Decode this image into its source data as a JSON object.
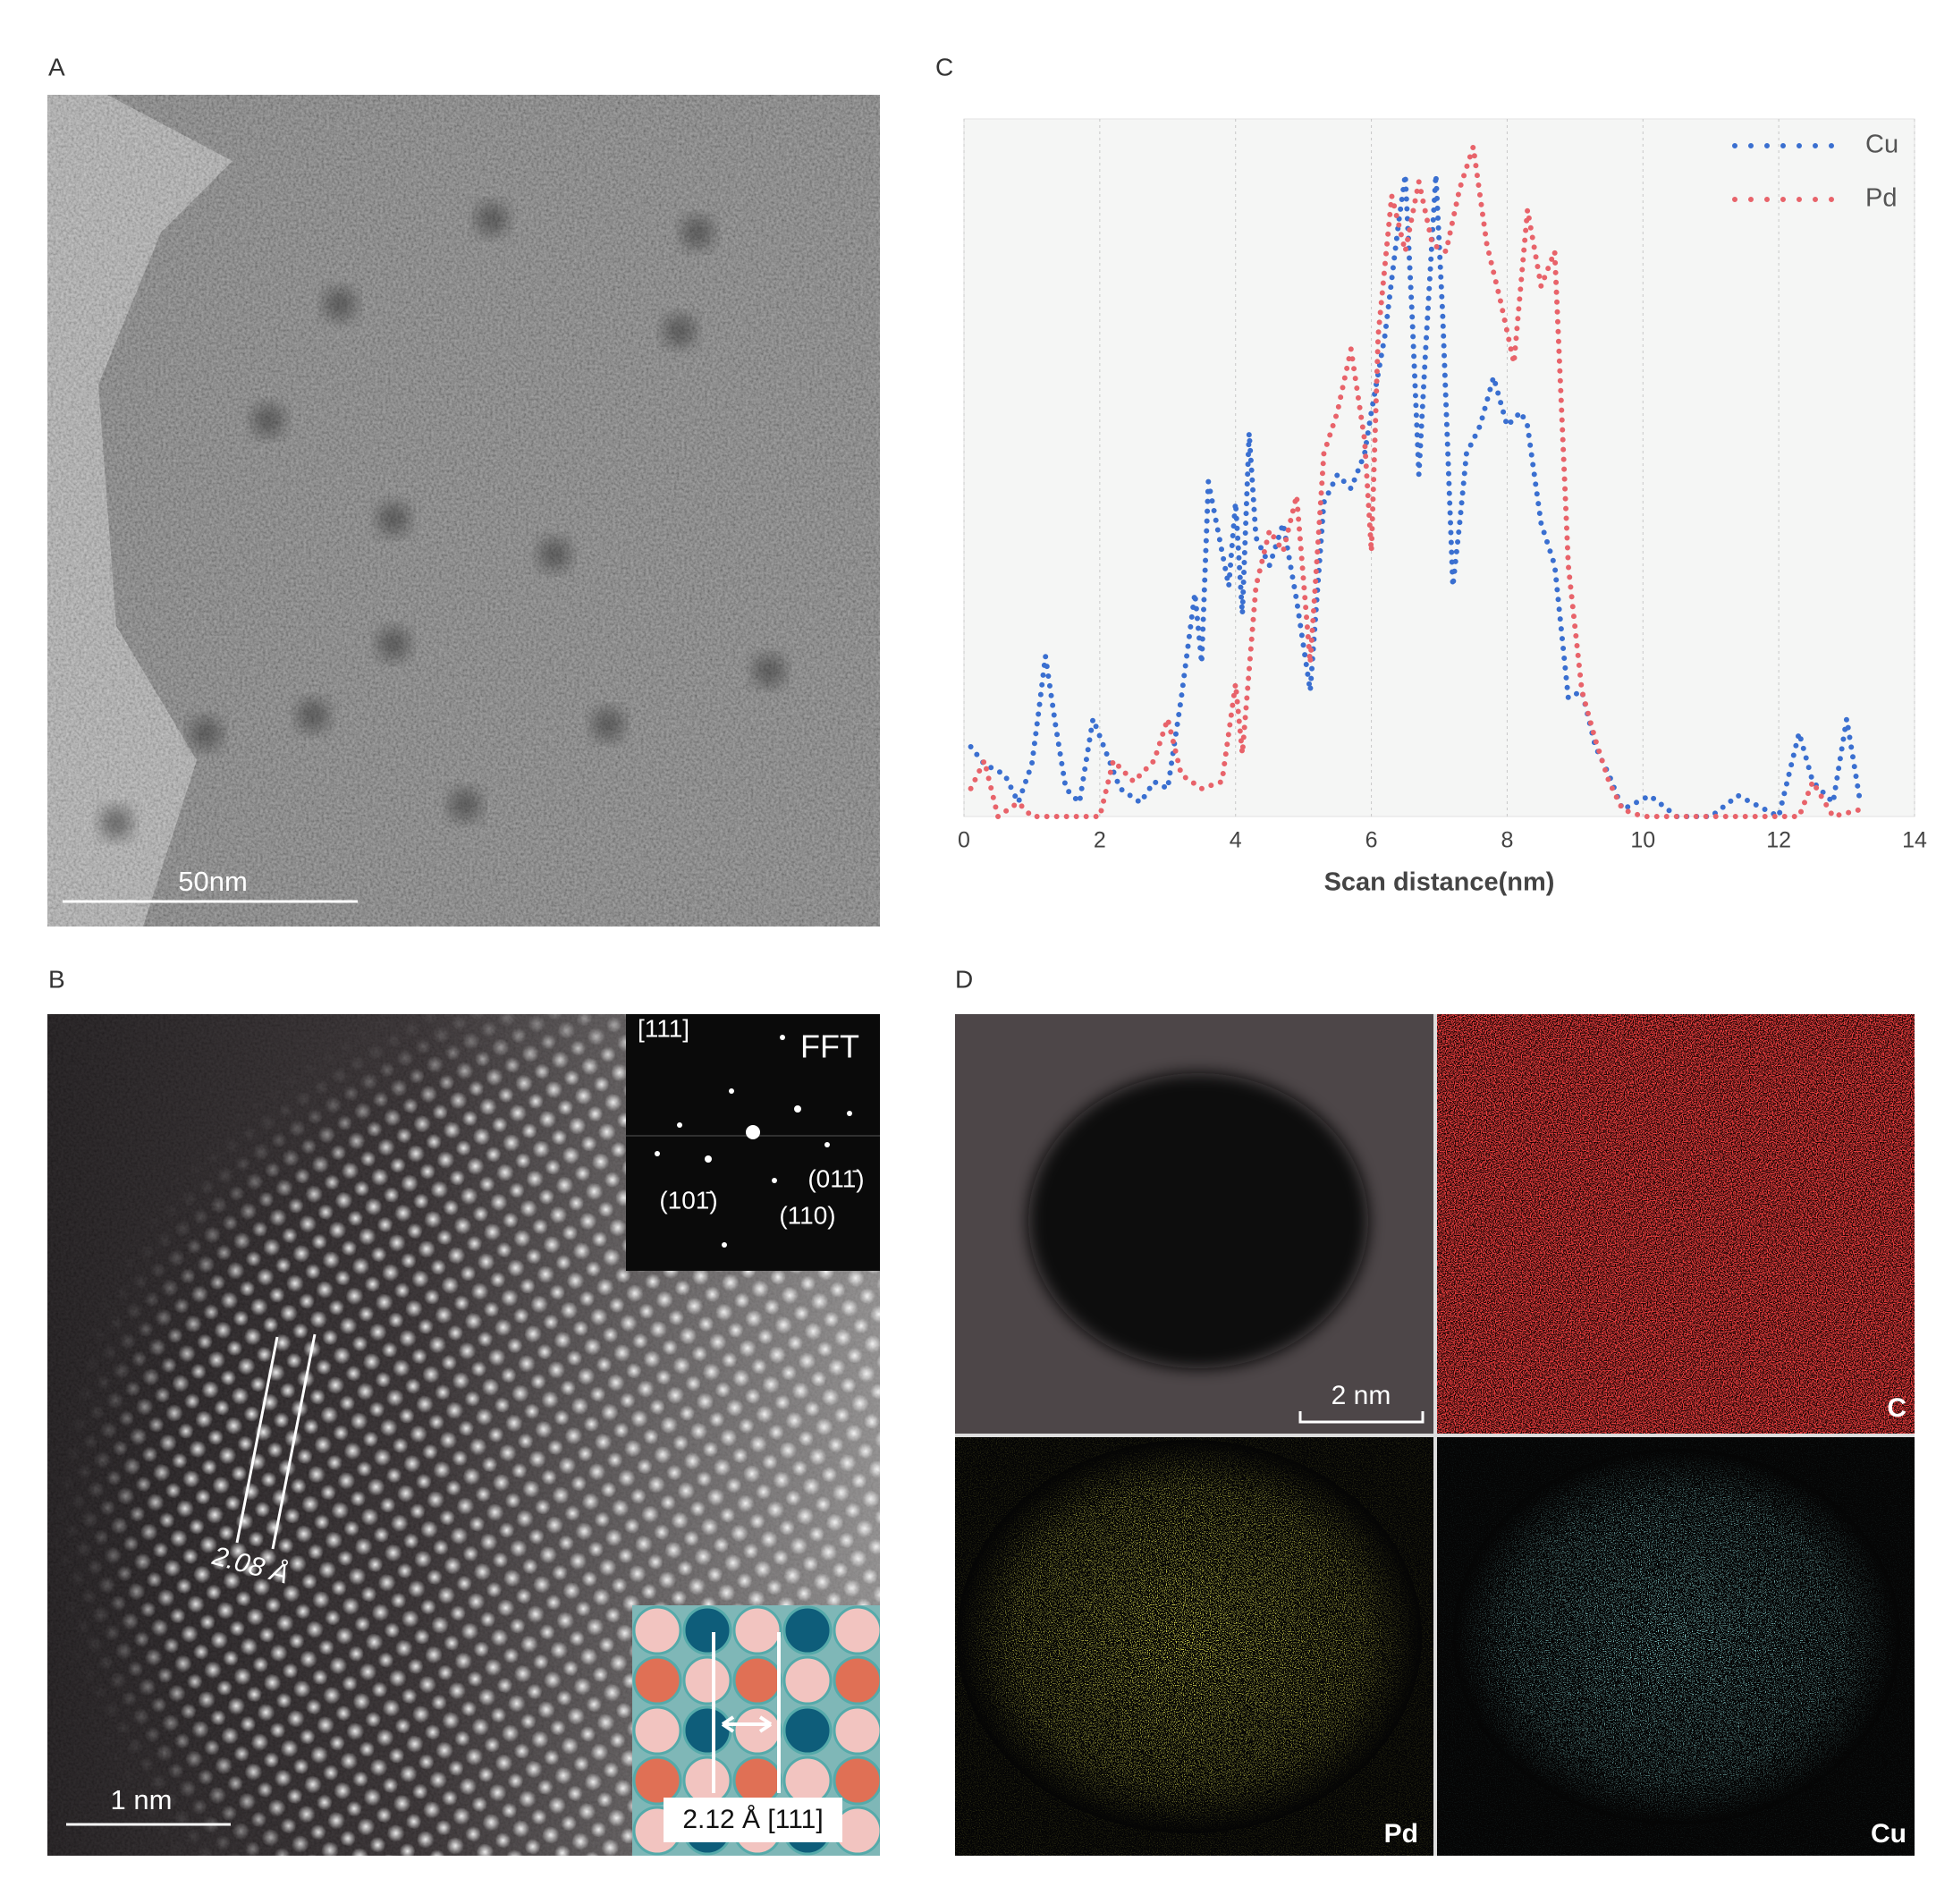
{
  "panels": {
    "a": {
      "label": "A",
      "scale_bar": "50nm"
    },
    "b": {
      "label": "B",
      "scale_bar": "1 nm",
      "spacing": "2.08 Å",
      "fft_zone": "[111]",
      "fft_title": "FFT",
      "fft_spots": [
        "(101̄)",
        "(011̄)",
        "(110)"
      ],
      "model_label": "2.12 Å [111]"
    },
    "c": {
      "label": "C"
    },
    "d": {
      "label": "D",
      "scale_bar": "2 nm",
      "maps": [
        "C",
        "Pd",
        "Cu"
      ]
    }
  },
  "chart_data": {
    "type": "line",
    "x_label": "Scan distance(nm)",
    "xlim": [
      0,
      14
    ],
    "xticks": [
      0,
      2,
      4,
      6,
      8,
      10,
      12,
      14
    ],
    "ylim": [
      0,
      100
    ],
    "grid": true,
    "legend": "top-right",
    "series": [
      {
        "name": "Cu",
        "color": "#3a6fd0",
        "x": [
          0.1,
          0.3,
          0.6,
          0.8,
          1.0,
          1.1,
          1.2,
          1.35,
          1.5,
          1.7,
          1.9,
          2.1,
          2.3,
          2.6,
          2.8,
          3.0,
          3.2,
          3.4,
          3.5,
          3.6,
          3.8,
          3.9,
          4.0,
          4.1,
          4.2,
          4.3,
          4.5,
          4.7,
          4.9,
          5.1,
          5.3,
          5.5,
          5.7,
          5.9,
          6.0,
          6.2,
          6.4,
          6.5,
          6.6,
          6.7,
          6.8,
          6.95,
          7.05,
          7.2,
          7.3,
          7.4,
          7.6,
          7.8,
          8.0,
          8.2,
          8.3,
          8.5,
          8.7,
          8.9,
          9.1,
          9.3,
          9.5,
          9.7,
          10.1,
          10.5,
          11.0,
          11.4,
          12.0,
          12.3,
          12.5,
          12.8,
          13.0,
          13.2
        ],
        "values": [
          10,
          7.5,
          6,
          2,
          7.5,
          15,
          23,
          13,
          4,
          2,
          14,
          9,
          4,
          2,
          5,
          4,
          17,
          32,
          22,
          48,
          38,
          33,
          45,
          29,
          55,
          40,
          36,
          42,
          31,
          18,
          45,
          49,
          47,
          52,
          58,
          69,
          85,
          92,
          72,
          49,
          67,
          92,
          72,
          33,
          42,
          52,
          56,
          63,
          56,
          58,
          56,
          42,
          36,
          17,
          18,
          10,
          6,
          1,
          3,
          0,
          0,
          3,
          0,
          12,
          5,
          2,
          14,
          2
        ]
      },
      {
        "name": "Pd",
        "color": "#e8636a",
        "x": [
          0.1,
          0.3,
          0.5,
          0.8,
          1.0,
          1.5,
          2.0,
          2.2,
          2.5,
          2.8,
          3.0,
          3.2,
          3.5,
          3.8,
          4.0,
          4.1,
          4.3,
          4.5,
          4.7,
          4.9,
          5.1,
          5.3,
          5.5,
          5.7,
          5.9,
          6.0,
          6.1,
          6.3,
          6.5,
          6.7,
          6.9,
          7.1,
          7.3,
          7.5,
          7.7,
          7.9,
          8.1,
          8.3,
          8.5,
          8.7,
          8.9,
          9.1,
          9.3,
          9.5,
          9.7,
          10.0,
          12.3,
          12.5,
          12.8,
          13.2
        ],
        "values": [
          4,
          8,
          0,
          2,
          0,
          0,
          0,
          8,
          5,
          8,
          14,
          6,
          4,
          5,
          19,
          9,
          33,
          41,
          38,
          46,
          22,
          52,
          58,
          67,
          54,
          38,
          69,
          89,
          81,
          91,
          82,
          81,
          90,
          96,
          82,
          74,
          65,
          87,
          76,
          81,
          36,
          18,
          11,
          5,
          1,
          0,
          0,
          5,
          0,
          1
        ]
      }
    ]
  }
}
